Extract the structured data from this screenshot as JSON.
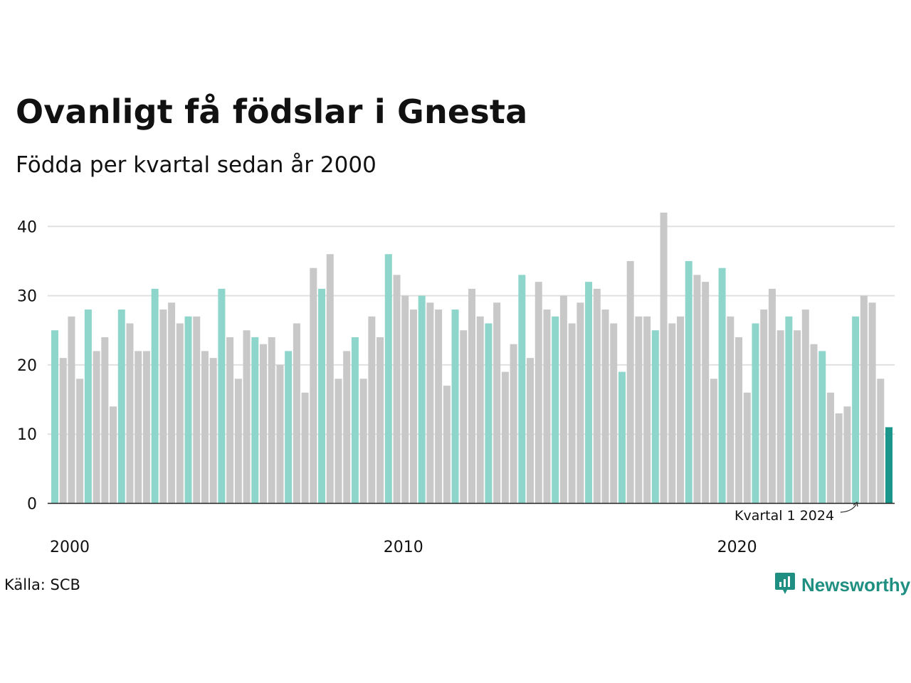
{
  "header": {
    "title": "Ovanligt få födslar i Gnesta",
    "subtitle": "Födda per kvartal sedan år 2000"
  },
  "footer": {
    "source": "Källa: SCB",
    "brand": "Newsworthy"
  },
  "colors": {
    "q1": "#8ed6cb",
    "other": "#c8c8c8",
    "highlight": "#1a968a",
    "grid": "#e0e0e0",
    "axis": "#222222",
    "brand": "#1f8f82"
  },
  "icons": {
    "brand_logo": "bar-chart-speech-bubble-icon"
  },
  "chart_data": {
    "type": "bar",
    "title": "Ovanligt få födslar i Gnesta",
    "subtitle": "Födda per kvartal sedan år 2000",
    "xlabel": "",
    "ylabel": "",
    "start_year": 2000,
    "start_quarter": 1,
    "values": [
      25,
      21,
      27,
      18,
      28,
      22,
      24,
      14,
      28,
      26,
      22,
      22,
      31,
      28,
      29,
      26,
      27,
      27,
      22,
      21,
      31,
      24,
      18,
      25,
      24,
      23,
      24,
      20,
      22,
      26,
      16,
      34,
      31,
      36,
      18,
      22,
      24,
      18,
      27,
      24,
      36,
      33,
      30,
      28,
      30,
      29,
      28,
      17,
      28,
      25,
      31,
      27,
      26,
      29,
      19,
      23,
      33,
      21,
      32,
      28,
      27,
      30,
      26,
      29,
      32,
      31,
      28,
      26,
      19,
      35,
      27,
      27,
      25,
      42,
      26,
      27,
      35,
      33,
      32,
      18,
      34,
      27,
      24,
      16,
      26,
      28,
      31,
      25,
      27,
      25,
      28,
      23,
      22,
      16,
      13,
      14,
      27,
      30,
      29,
      18,
      11
    ],
    "ylim": [
      0,
      42
    ],
    "yticks": [
      0,
      10,
      20,
      30,
      40
    ],
    "xticks": [
      "2000",
      "2010",
      "2020"
    ],
    "grid": true,
    "annotation": "Kvartal 1 2024"
  }
}
